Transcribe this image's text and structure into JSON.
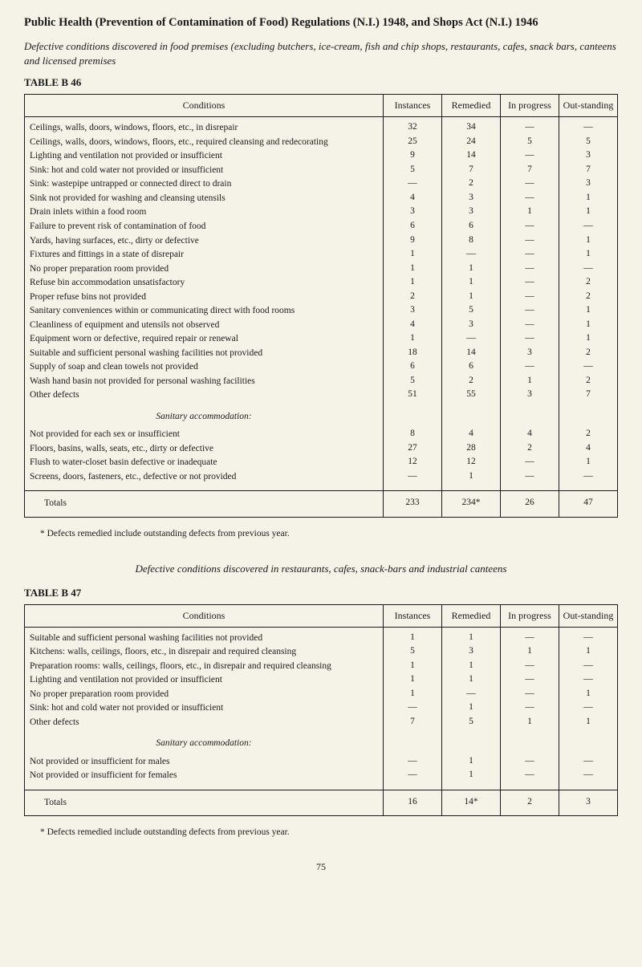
{
  "heading": "Public Health (Prevention of Contamination of Food) Regulations (N.I.) 1948, and Shops Act (N.I.) 1946",
  "intro": "Defective conditions discovered in food premises (excluding butchers, ice-cream, fish and chip shops, restaurants, cafes, snack bars, canteens and licensed premises",
  "table46": {
    "label": "TABLE B 46",
    "headers": {
      "cond": "Conditions",
      "inst": "Instances",
      "rem": "Remedied",
      "prog": "In progress",
      "out": "Out-standing"
    },
    "rows": [
      {
        "d": "Ceilings, walls, doors, windows, floors, etc., in disrepair",
        "i": "32",
        "r": "34",
        "p": "—",
        "o": "—"
      },
      {
        "d": "Ceilings, walls, doors, windows, floors, etc., required cleansing and redecorating",
        "i": "25",
        "r": "24",
        "p": "5",
        "o": "5"
      },
      {
        "d": "Lighting and ventilation not provided or insufficient",
        "i": "9",
        "r": "14",
        "p": "—",
        "o": "3"
      },
      {
        "d": "Sink: hot and cold water not provided or insufficient",
        "i": "5",
        "r": "7",
        "p": "7",
        "o": "7"
      },
      {
        "d": "Sink: wastepipe untrapped or connected direct to drain",
        "i": "—",
        "r": "2",
        "p": "—",
        "o": "3"
      },
      {
        "d": "Sink not provided for washing and cleansing utensils",
        "i": "4",
        "r": "3",
        "p": "—",
        "o": "1"
      },
      {
        "d": "Drain inlets within a food room",
        "i": "3",
        "r": "3",
        "p": "1",
        "o": "1"
      },
      {
        "d": "Failure to prevent risk of contamination of food",
        "i": "6",
        "r": "6",
        "p": "—",
        "o": "—"
      },
      {
        "d": "Yards, having surfaces, etc., dirty or defective",
        "i": "9",
        "r": "8",
        "p": "—",
        "o": "1"
      },
      {
        "d": "Fixtures and fittings in a state of disrepair",
        "i": "1",
        "r": "—",
        "p": "—",
        "o": "1"
      },
      {
        "d": "No proper preparation room provided",
        "i": "1",
        "r": "1",
        "p": "—",
        "o": "—"
      },
      {
        "d": "Refuse bin accommodation unsatisfactory",
        "i": "1",
        "r": "1",
        "p": "—",
        "o": "2"
      },
      {
        "d": "Proper refuse bins not provided",
        "i": "2",
        "r": "1",
        "p": "—",
        "o": "2"
      },
      {
        "d": "Sanitary conveniences within or communicating direct with food rooms",
        "i": "3",
        "r": "5",
        "p": "—",
        "o": "1"
      },
      {
        "d": "Cleanliness of equipment and utensils not observed",
        "i": "4",
        "r": "3",
        "p": "—",
        "o": "1"
      },
      {
        "d": "Equipment worn or defective, required repair or renewal",
        "i": "1",
        "r": "—",
        "p": "—",
        "o": "1"
      },
      {
        "d": "Suitable and sufficient personal washing facilities not provided",
        "i": "18",
        "r": "14",
        "p": "3",
        "o": "2"
      },
      {
        "d": "Supply of soap and clean towels not provided",
        "i": "6",
        "r": "6",
        "p": "—",
        "o": "—"
      },
      {
        "d": "Wash hand basin not provided for personal washing facilities",
        "i": "5",
        "r": "2",
        "p": "1",
        "o": "2"
      },
      {
        "d": "Other defects",
        "i": "51",
        "r": "55",
        "p": "3",
        "o": "7"
      }
    ],
    "section_label": "Sanitary accommodation:",
    "section_rows": [
      {
        "d": "Not provided for each sex or insufficient",
        "i": "8",
        "r": "4",
        "p": "4",
        "o": "2"
      },
      {
        "d": "Floors, basins, walls, seats, etc., dirty or defective",
        "i": "27",
        "r": "28",
        "p": "2",
        "o": "4"
      },
      {
        "d": "Flush to water-closet basin defective or inadequate",
        "i": "12",
        "r": "12",
        "p": "—",
        "o": "1"
      },
      {
        "d": "Screens, doors, fasteners, etc., defective or not provided",
        "i": "—",
        "r": "1",
        "p": "—",
        "o": "—"
      }
    ],
    "totals": {
      "d": "Totals",
      "i": "233",
      "r": "234*",
      "p": "26",
      "o": "47"
    }
  },
  "footnote46": "* Defects remedied include outstanding defects from previous year.",
  "subtitle47": "Defective conditions discovered in restaurants, cafes, snack-bars and industrial canteens",
  "table47": {
    "label": "TABLE B 47",
    "headers": {
      "cond": "Conditions",
      "inst": "Instances",
      "rem": "Remedied",
      "prog": "In progress",
      "out": "Out-standing"
    },
    "rows": [
      {
        "d": "Suitable and sufficient personal washing facilities not provided",
        "i": "1",
        "r": "1",
        "p": "—",
        "o": "—"
      },
      {
        "d": "Kitchens: walls, ceilings, floors, etc., in disrepair and required cleansing",
        "i": "5",
        "r": "3",
        "p": "1",
        "o": "1"
      },
      {
        "d": "Preparation rooms: walls, ceilings, floors, etc., in disrepair and required cleansing",
        "i": "1",
        "r": "1",
        "p": "—",
        "o": "—"
      },
      {
        "d": "Lighting and ventilation not provided or insufficient",
        "i": "1",
        "r": "1",
        "p": "—",
        "o": "—"
      },
      {
        "d": "No proper preparation room provided",
        "i": "1",
        "r": "—",
        "p": "—",
        "o": "1"
      },
      {
        "d": "Sink: hot and cold water not provided or insufficient",
        "i": "—",
        "r": "1",
        "p": "—",
        "o": "—"
      },
      {
        "d": "Other defects",
        "i": "7",
        "r": "5",
        "p": "1",
        "o": "1"
      }
    ],
    "section_label": "Sanitary accommodation:",
    "section_rows": [
      {
        "d": "Not provided or insufficient for males",
        "i": "—",
        "r": "1",
        "p": "—",
        "o": "—"
      },
      {
        "d": "Not provided or insufficient for females",
        "i": "—",
        "r": "1",
        "p": "—",
        "o": "—"
      }
    ],
    "totals": {
      "d": "Totals",
      "i": "16",
      "r": "14*",
      "p": "2",
      "o": "3"
    }
  },
  "footnote47": "* Defects remedied include outstanding defects from previous year.",
  "page_number": "75"
}
